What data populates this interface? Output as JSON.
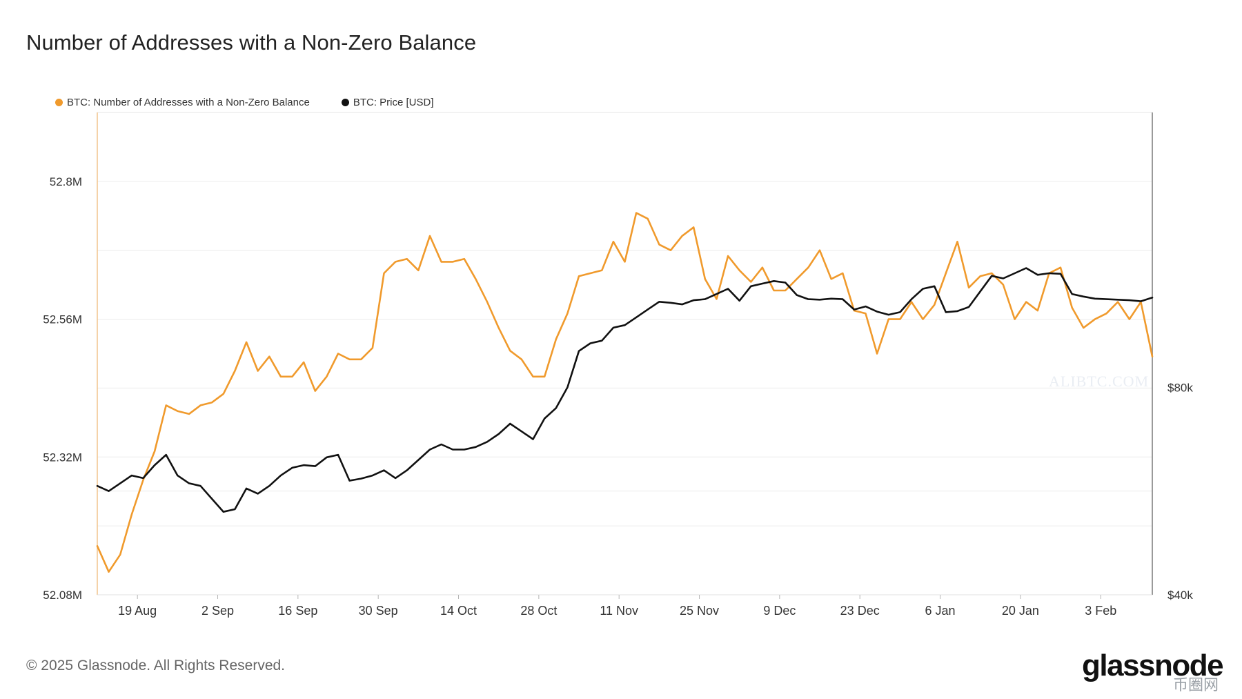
{
  "title": "Number of Addresses with a Non-Zero Balance",
  "footer": "© 2025 Glassnode. All Rights Reserved.",
  "brand": "glassnode",
  "watermark": "ALIBTC.COM",
  "badge": "币圈网",
  "colors": {
    "addresses": "#f09a2c",
    "price": "#111111",
    "grid": "#ececec",
    "axis": "#b5b5b5"
  },
  "chart_data": {
    "type": "line",
    "title": "Number of Addresses with a Non-Zero Balance",
    "x_ticks": [
      "19 Aug",
      "2 Sep",
      "16 Sep",
      "30 Sep",
      "14 Oct",
      "28 Oct",
      "11 Nov",
      "25 Nov",
      "9 Dec",
      "23 Dec",
      "6 Jan",
      "20 Jan",
      "3 Feb"
    ],
    "x_range": [
      0,
      184
    ],
    "x_tick_positions": [
      7,
      21,
      35,
      49,
      63,
      77,
      91,
      105,
      119,
      133,
      147,
      161,
      175
    ],
    "y_left": {
      "label": "",
      "ticks": [
        "52.08M",
        "52.32M",
        "52.56M",
        "52.8M"
      ],
      "tick_values": [
        52.08,
        52.32,
        52.56,
        52.8
      ],
      "range": [
        52.08,
        52.92
      ]
    },
    "y_right": {
      "label": "",
      "ticks": [
        "$40k",
        "$80k"
      ],
      "tick_values": [
        40000,
        80000
      ],
      "range": [
        40000,
        133000
      ]
    },
    "legend": [
      "BTC: Number of Addresses with a Non-Zero Balance",
      "BTC: Price [USD]"
    ],
    "series": [
      {
        "name": "BTC: Number of Addresses with a Non-Zero Balance",
        "unit": "M",
        "x": [
          0,
          2,
          4,
          6,
          8,
          10,
          12,
          14,
          16,
          18,
          20,
          22,
          24,
          26,
          28,
          30,
          32,
          34,
          36,
          38,
          40,
          42,
          44,
          46,
          48,
          50,
          52,
          54,
          56,
          58,
          60,
          62,
          64,
          66,
          68,
          70,
          72,
          74,
          76,
          78,
          80,
          82,
          84,
          86,
          88,
          90,
          92,
          94,
          96,
          98,
          100,
          102,
          104,
          106,
          108,
          110,
          112,
          114,
          116,
          118,
          120,
          122,
          124,
          126,
          128,
          130,
          132,
          134,
          136,
          138,
          140,
          142,
          144,
          146,
          148,
          150,
          152,
          154,
          156,
          158,
          160,
          162,
          164,
          166,
          168,
          170,
          172,
          174,
          176,
          178,
          180,
          182,
          184
        ],
        "values": [
          52.165,
          52.12,
          52.15,
          52.22,
          52.28,
          52.33,
          52.41,
          52.4,
          52.395,
          52.41,
          52.415,
          52.43,
          52.47,
          52.52,
          52.47,
          52.495,
          52.46,
          52.46,
          52.485,
          52.435,
          52.46,
          52.5,
          52.49,
          52.49,
          52.51,
          52.64,
          52.66,
          52.665,
          52.645,
          52.705,
          52.66,
          52.66,
          52.665,
          52.63,
          52.59,
          52.545,
          52.505,
          52.49,
          52.46,
          52.46,
          52.525,
          52.57,
          52.635,
          52.64,
          52.645,
          52.695,
          52.66,
          52.745,
          52.735,
          52.69,
          52.68,
          52.705,
          52.72,
          52.63,
          52.595,
          52.67,
          52.645,
          52.625,
          52.65,
          52.61,
          52.61,
          52.63,
          52.65,
          52.68,
          52.63,
          52.64,
          52.575,
          52.57,
          52.5,
          52.56,
          52.56,
          52.59,
          52.56,
          52.585,
          52.64,
          52.695,
          52.615,
          52.635,
          52.64,
          52.62,
          52.56,
          52.59,
          52.575,
          52.64,
          52.65,
          52.58,
          52.545,
          52.56,
          52.57,
          52.59,
          52.56,
          52.59,
          52.495
        ]
      },
      {
        "name": "BTC: Price [USD]",
        "unit": "USD",
        "x": [
          0,
          2,
          4,
          6,
          8,
          10,
          12,
          14,
          16,
          18,
          20,
          22,
          24,
          26,
          28,
          30,
          32,
          34,
          36,
          38,
          40,
          42,
          44,
          46,
          48,
          50,
          52,
          54,
          56,
          58,
          60,
          62,
          64,
          66,
          68,
          70,
          72,
          74,
          76,
          78,
          80,
          82,
          84,
          86,
          88,
          90,
          92,
          94,
          96,
          98,
          100,
          102,
          104,
          106,
          108,
          110,
          112,
          114,
          116,
          118,
          120,
          122,
          124,
          126,
          128,
          130,
          132,
          134,
          136,
          138,
          140,
          142,
          144,
          146,
          148,
          150,
          152,
          154,
          156,
          158,
          160,
          162,
          164,
          166,
          168,
          170,
          172,
          174,
          176,
          178,
          180,
          182,
          184
        ],
        "values": [
          61000,
          60000,
          61500,
          63000,
          62500,
          65000,
          67000,
          63000,
          61500,
          61000,
          58500,
          56000,
          56500,
          60500,
          59500,
          61000,
          63000,
          64500,
          65000,
          64800,
          66500,
          67000,
          62000,
          62400,
          63000,
          64000,
          62500,
          64000,
          66000,
          68000,
          69000,
          68000,
          68000,
          68500,
          69500,
          71000,
          73000,
          71500,
          70000,
          74000,
          76000,
          80000,
          87000,
          88500,
          89000,
          91500,
          92000,
          93500,
          95000,
          96500,
          96300,
          96000,
          96800,
          97000,
          98000,
          99000,
          96700,
          99500,
          100000,
          100500,
          100200,
          97800,
          97000,
          96900,
          97100,
          97000,
          95000,
          95600,
          94600,
          94000,
          94500,
          97000,
          99000,
          99500,
          94500,
          94700,
          95500,
          98500,
          101500,
          101000,
          102000,
          103000,
          101700,
          102000,
          101900,
          98000,
          97500,
          97100,
          97000,
          96900,
          96800,
          96600,
          97300
        ]
      }
    ]
  }
}
